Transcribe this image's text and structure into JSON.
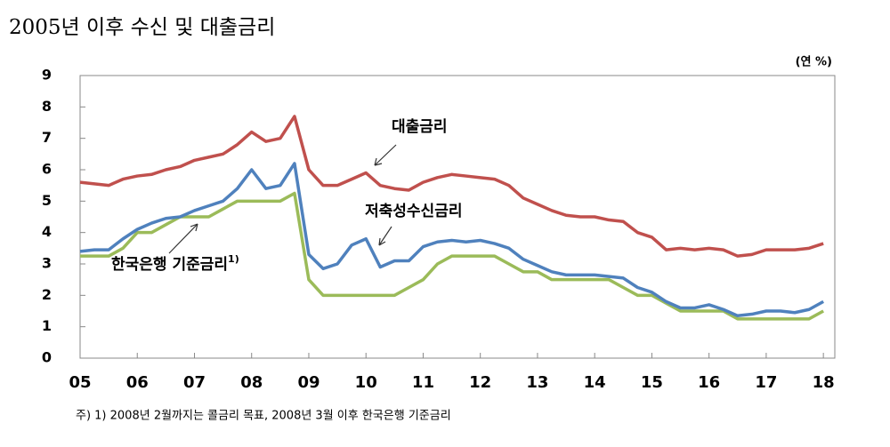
{
  "chart_data": {
    "type": "line",
    "title": "2005년 이후 수신 및 대출금리",
    "unit": "(연 %)",
    "footnote": "주) 1) 2008년 2월까지는 콜금리 목표, 2008년 3월 이후 한국은행 기준금리",
    "note_marker": "1)",
    "x": [
      2005,
      2005.25,
      2005.5,
      2005.75,
      2006,
      2006.25,
      2006.5,
      2006.75,
      2007,
      2007.25,
      2007.5,
      2007.75,
      2008,
      2008.25,
      2008.5,
      2008.75,
      2009,
      2009.25,
      2009.5,
      2009.75,
      2010,
      2010.25,
      2010.5,
      2010.75,
      2011,
      2011.25,
      2011.5,
      2011.75,
      2012,
      2012.25,
      2012.5,
      2012.75,
      2013,
      2013.25,
      2013.5,
      2013.75,
      2014,
      2014.25,
      2014.5,
      2014.75,
      2015,
      2015.25,
      2015.5,
      2015.75,
      2016,
      2016.25,
      2016.5,
      2016.75,
      2017,
      2017.25,
      2017.5,
      2017.75,
      2018
    ],
    "series": [
      {
        "name": "대출금리",
        "color": "#c0504d",
        "values": [
          5.6,
          5.55,
          5.5,
          5.7,
          5.8,
          5.85,
          6.0,
          6.1,
          6.3,
          6.4,
          6.5,
          6.8,
          7.2,
          6.9,
          7.0,
          7.7,
          6.0,
          5.5,
          5.5,
          5.7,
          5.9,
          5.5,
          5.4,
          5.35,
          5.6,
          5.75,
          5.85,
          5.8,
          5.75,
          5.7,
          5.5,
          5.1,
          4.9,
          4.7,
          4.55,
          4.5,
          4.5,
          4.4,
          4.35,
          4.0,
          3.85,
          3.45,
          3.5,
          3.45,
          3.5,
          3.45,
          3.25,
          3.3,
          3.45,
          3.45,
          3.45,
          3.5,
          3.65
        ]
      },
      {
        "name": "저축성수신금리",
        "color": "#4f81bd",
        "values": [
          3.4,
          3.45,
          3.45,
          3.8,
          4.1,
          4.3,
          4.45,
          4.5,
          4.7,
          4.85,
          5.0,
          5.4,
          6.0,
          5.4,
          5.5,
          6.2,
          3.3,
          2.85,
          3.0,
          3.6,
          3.8,
          2.9,
          3.1,
          3.1,
          3.55,
          3.7,
          3.75,
          3.7,
          3.75,
          3.65,
          3.5,
          3.15,
          2.95,
          2.75,
          2.65,
          2.65,
          2.65,
          2.6,
          2.55,
          2.25,
          2.1,
          1.8,
          1.6,
          1.6,
          1.7,
          1.55,
          1.35,
          1.4,
          1.5,
          1.5,
          1.45,
          1.55,
          1.8
        ]
      },
      {
        "name": "한국은행 기준금리",
        "color": "#9bbb59",
        "values": [
          3.25,
          3.25,
          3.25,
          3.5,
          4.0,
          4.0,
          4.25,
          4.5,
          4.5,
          4.5,
          4.75,
          5.0,
          5.0,
          5.0,
          5.0,
          5.25,
          2.5,
          2.0,
          2.0,
          2.0,
          2.0,
          2.0,
          2.0,
          2.25,
          2.5,
          3.0,
          3.25,
          3.25,
          3.25,
          3.25,
          3.0,
          2.75,
          2.75,
          2.5,
          2.5,
          2.5,
          2.5,
          2.5,
          2.25,
          2.0,
          2.0,
          1.75,
          1.5,
          1.5,
          1.5,
          1.5,
          1.25,
          1.25,
          1.25,
          1.25,
          1.25,
          1.25,
          1.5
        ]
      }
    ],
    "xlim": [
      2005,
      2018.2
    ],
    "xticks": [
      {
        "value": 2005,
        "label": "05"
      },
      {
        "value": 2006,
        "label": "06"
      },
      {
        "value": 2007,
        "label": "07"
      },
      {
        "value": 2008,
        "label": "08"
      },
      {
        "value": 2009,
        "label": "09"
      },
      {
        "value": 2010,
        "label": "10"
      },
      {
        "value": 2011,
        "label": "11"
      },
      {
        "value": 2012,
        "label": "12"
      },
      {
        "value": 2013,
        "label": "13"
      },
      {
        "value": 2014,
        "label": "14"
      },
      {
        "value": 2015,
        "label": "15"
      },
      {
        "value": 2016,
        "label": "16"
      },
      {
        "value": 2017,
        "label": "17"
      },
      {
        "value": 2018,
        "label": "18"
      }
    ],
    "ylim": [
      0,
      9
    ],
    "yticks": [
      0,
      1,
      2,
      3,
      4,
      5,
      6,
      7,
      8,
      9
    ],
    "grid": false
  }
}
